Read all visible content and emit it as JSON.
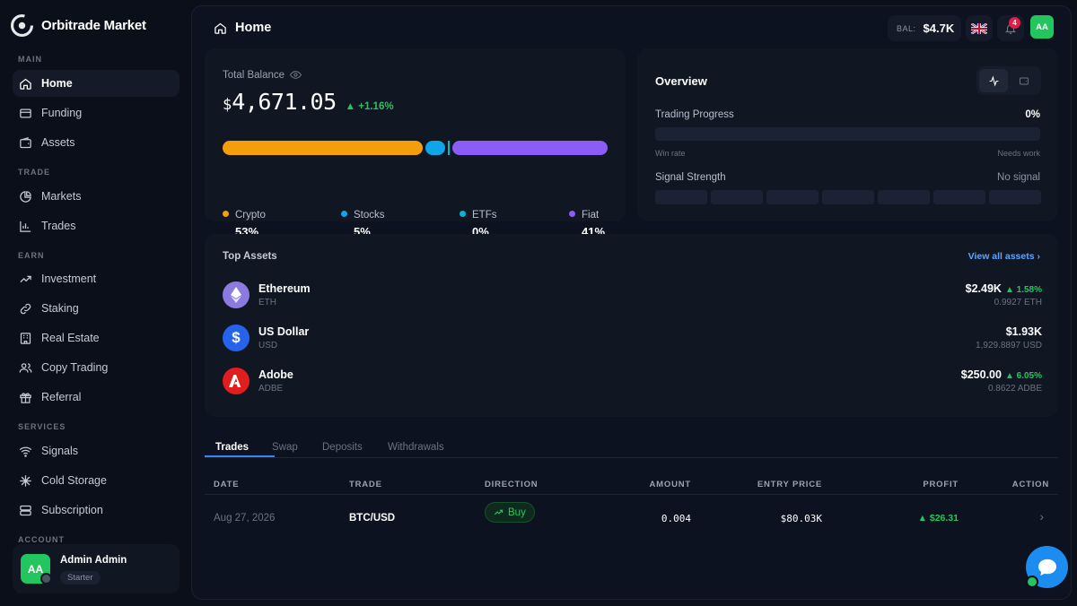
{
  "brand": {
    "name": "Orbitrade Market"
  },
  "sidebar": {
    "sections": {
      "main": "MAIN",
      "trade": "TRADE",
      "earn": "EARN",
      "services": "SERVICES",
      "account": "ACCOUNT"
    },
    "items": [
      {
        "label": "Home",
        "icon": "home-icon"
      },
      {
        "label": "Funding",
        "icon": "card-icon"
      },
      {
        "label": "Assets",
        "icon": "wallet-icon"
      },
      {
        "label": "Markets",
        "icon": "pie-chart-icon"
      },
      {
        "label": "Trades",
        "icon": "bar-chart-icon"
      },
      {
        "label": "Investment",
        "icon": "trend-up-icon"
      },
      {
        "label": "Staking",
        "icon": "link-icon"
      },
      {
        "label": "Real Estate",
        "icon": "building-icon"
      },
      {
        "label": "Copy Trading",
        "icon": "users-icon"
      },
      {
        "label": "Referral",
        "icon": "gift-icon"
      },
      {
        "label": "Signals",
        "icon": "signal-icon"
      },
      {
        "label": "Cold Storage",
        "icon": "snowflake-icon"
      },
      {
        "label": "Subscription",
        "icon": "stack-icon"
      }
    ],
    "user": {
      "initials": "AA",
      "name": "Admin Admin",
      "plan": "Starter"
    }
  },
  "header": {
    "title": "Home",
    "bal_label": "BAL:",
    "bal_value": "$4.7K",
    "notif_count": "4",
    "avatar": "AA"
  },
  "balance": {
    "label": "Total Balance",
    "currency": "$",
    "amount": "4,671.05",
    "change": "+1.16%",
    "allocation": [
      {
        "name": "Crypto",
        "pct": "53%",
        "value": 53,
        "color": "#f59e0b"
      },
      {
        "name": "Stocks",
        "pct": "5%",
        "value": 5,
        "color": "#0ea5e9"
      },
      {
        "name": "ETFs",
        "pct": "0%",
        "value": 0,
        "color": "#06b6d4"
      },
      {
        "name": "Fiat",
        "pct": "41%",
        "value": 41,
        "color": "#8b5cf6"
      }
    ]
  },
  "overview": {
    "title": "Overview",
    "trading_progress": {
      "label": "Trading Progress",
      "value": "0%",
      "left": "Win rate",
      "right": "Needs work"
    },
    "signal": {
      "label": "Signal Strength",
      "value": "No signal"
    }
  },
  "top_assets": {
    "title": "Top Assets",
    "link": "View all assets",
    "items": [
      {
        "name": "Ethereum",
        "symbol": "ETH",
        "value": "$2.49K",
        "change": "1.58%",
        "qty": "0.9927 ETH"
      },
      {
        "name": "US Dollar",
        "symbol": "USD",
        "value": "$1.93K",
        "change": "",
        "qty": "1,929.8897 USD"
      },
      {
        "name": "Adobe",
        "symbol": "ADBE",
        "value": "$250.00",
        "change": "6.05%",
        "qty": "0.8622 ADBE"
      }
    ]
  },
  "tabs": [
    "Trades",
    "Swap",
    "Deposits",
    "Withdrawals"
  ],
  "trades_table": {
    "headers": [
      "DATE",
      "TRADE",
      "DIRECTION",
      "AMOUNT",
      "ENTRY PRICE",
      "PROFIT",
      "ACTION"
    ],
    "rows": [
      {
        "date": "Aug 27, 2026",
        "pair": "BTC/USD",
        "direction": "Buy",
        "amount": "0.004",
        "entry": "$80.03K",
        "profit": "$26.31"
      }
    ]
  }
}
